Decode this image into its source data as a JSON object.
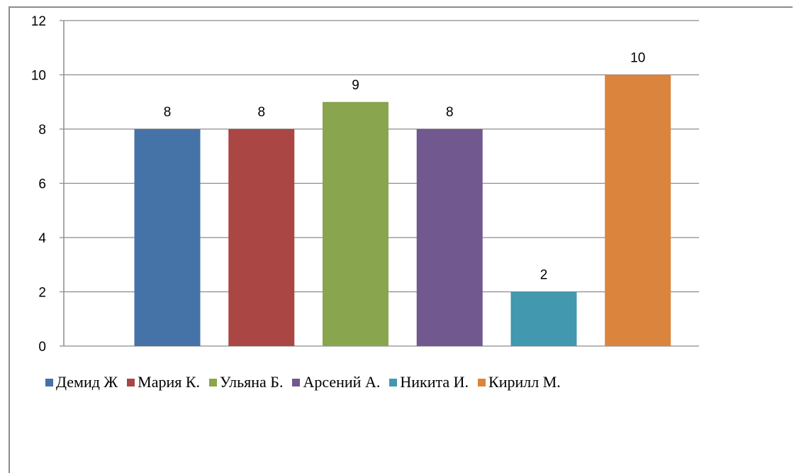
{
  "chart_data": {
    "type": "bar",
    "categories": [
      "Демид Ж",
      "Мария К.",
      "Ульяна Б.",
      "Арсений А.",
      "Никита И.",
      "Кирилл М."
    ],
    "values": [
      8,
      8,
      9,
      8,
      2,
      10
    ],
    "colors": [
      "#4572A7",
      "#AA4643",
      "#89A54E",
      "#71588F",
      "#4198AF",
      "#DB843D"
    ],
    "title": "",
    "xlabel": "",
    "ylabel": "",
    "ylim": [
      0,
      12
    ],
    "yticks": [
      0,
      2,
      4,
      6,
      8,
      10,
      12
    ],
    "grid": true,
    "data_labels": true,
    "legend_position": "bottom"
  }
}
